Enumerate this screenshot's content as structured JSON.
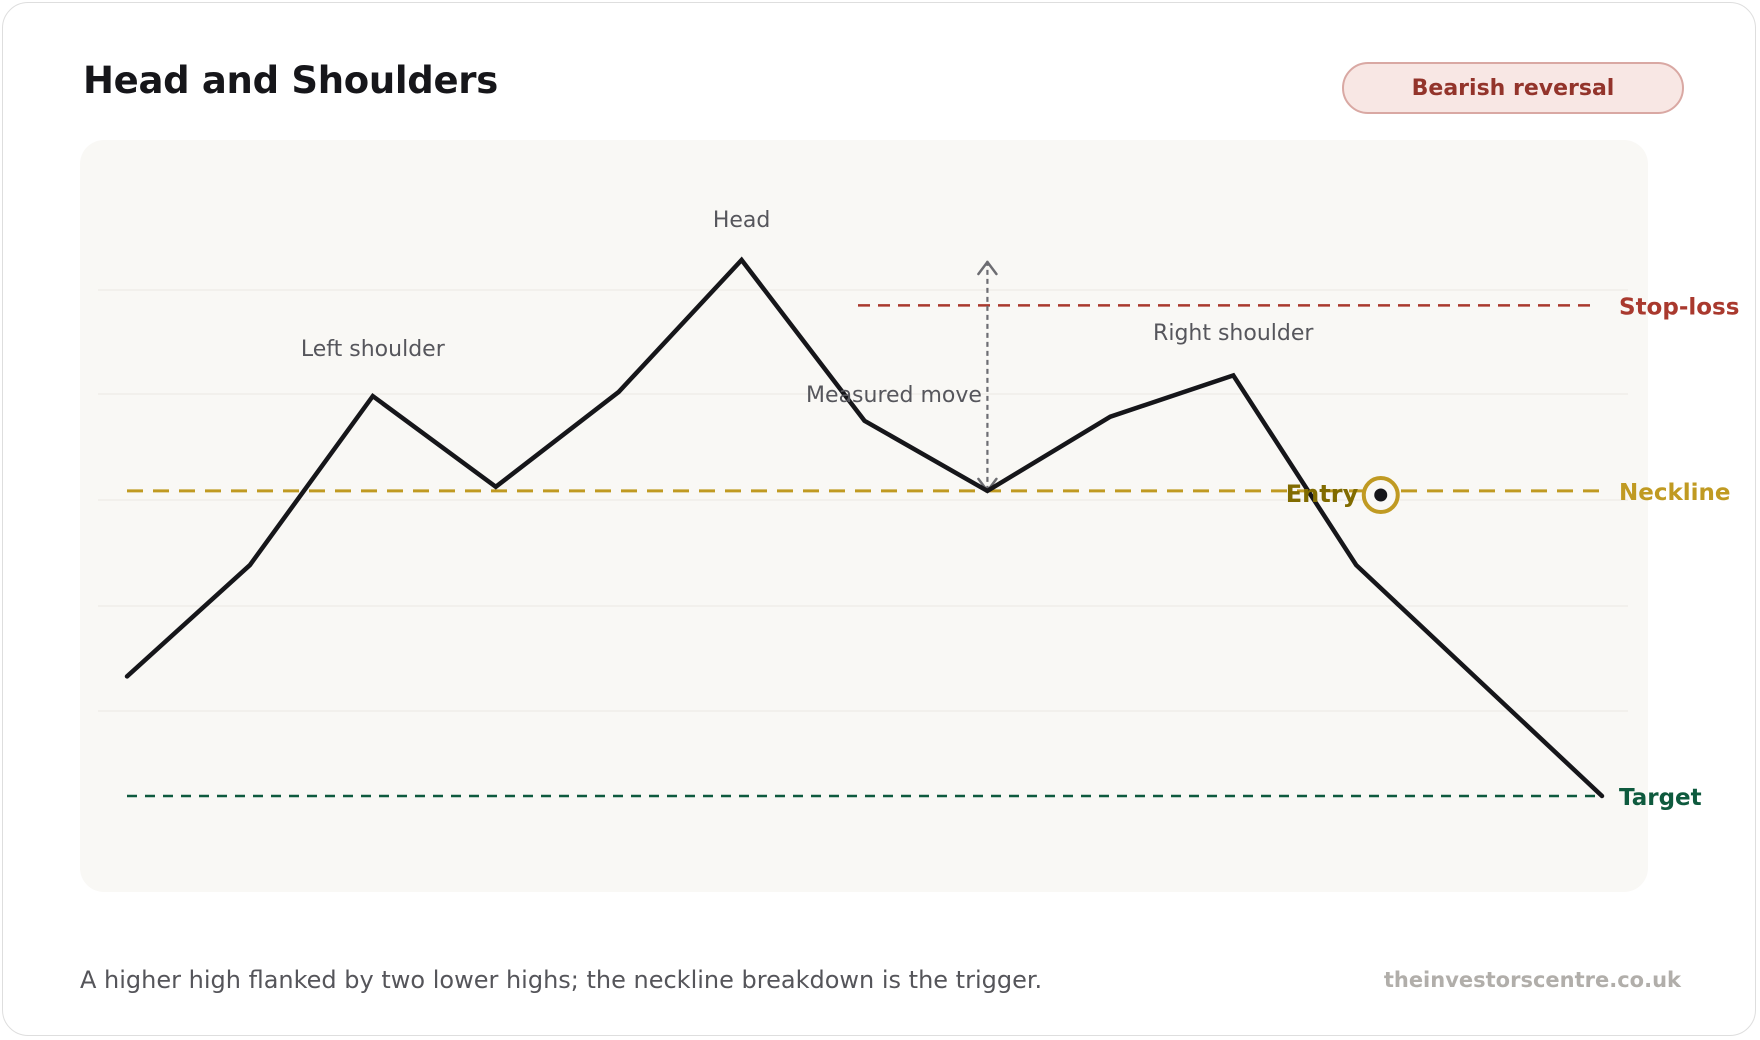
{
  "title": "Head and Shoulders",
  "badge": "Bearish reversal",
  "caption": "A higher high flanked by two lower highs; the neckline breakdown is the trigger.",
  "source": "theinvestorscentre.co.uk",
  "colors": {
    "price": "#16161a",
    "neckline": "#c09a22",
    "stop_loss": "#a9392e",
    "target": "#0e5a3e",
    "entry_label": "#816b00",
    "measured": "#6d6d72"
  },
  "chart_data": {
    "type": "line",
    "grid": true,
    "price": [
      [
        0,
        48
      ],
      [
        1,
        75
      ],
      [
        2,
        116
      ],
      [
        3,
        94
      ],
      [
        4,
        117
      ],
      [
        5,
        149
      ],
      [
        6,
        110
      ],
      [
        7,
        93
      ],
      [
        8,
        111
      ],
      [
        9,
        121
      ],
      [
        10,
        75
      ],
      [
        11,
        47
      ],
      [
        12,
        19
      ]
    ],
    "levels": {
      "stop_loss": 138,
      "neckline": 93,
      "target": 19
    },
    "entry": [
      10.2,
      92
    ],
    "annotations": {
      "left_shoulder": "Left shoulder",
      "head": "Head",
      "right_shoulder": "Right shoulder",
      "measured_move": "Measured move",
      "entry": "Entry"
    },
    "level_labels": {
      "stop_loss": "Stop-loss",
      "neckline": "Neckline",
      "target": "Target"
    }
  }
}
